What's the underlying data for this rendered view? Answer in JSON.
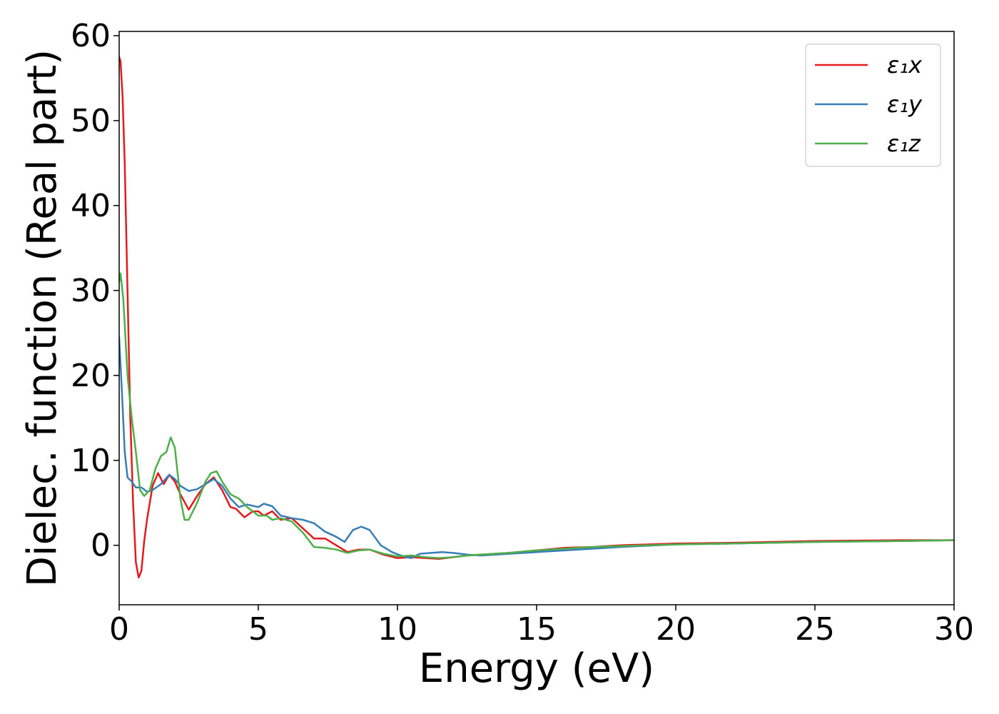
{
  "chart_data": {
    "type": "line",
    "title": "",
    "xlabel": "Energy (eV)",
    "ylabel": "Dielec. function (Real part)",
    "xlim": [
      0,
      30
    ],
    "ylim": [
      -7,
      60.5
    ],
    "xticks": [
      0,
      5,
      10,
      15,
      20,
      25,
      30
    ],
    "yticks": [
      0,
      10,
      20,
      30,
      40,
      50,
      60
    ],
    "grid": false,
    "legend_position": "upper right",
    "series": [
      {
        "name": "ε₁x",
        "color": "#e41a1c",
        "x": [
          0,
          0.05,
          0.12,
          0.2,
          0.3,
          0.4,
          0.5,
          0.6,
          0.7,
          0.8,
          0.9,
          1.0,
          1.2,
          1.4,
          1.6,
          1.8,
          2.0,
          2.2,
          2.5,
          2.8,
          3.1,
          3.4,
          3.7,
          4.0,
          4.2,
          4.5,
          4.8,
          5.0,
          5.2,
          5.5,
          5.8,
          6.2,
          6.6,
          7.0,
          7.4,
          7.8,
          8.2,
          8.6,
          9.0,
          9.5,
          10.0,
          10.5,
          11.0,
          11.5,
          12.0,
          12.5,
          13.0,
          14.0,
          15.0,
          16.0,
          17.0,
          18.0,
          20.0,
          22.0,
          25.0,
          28.0,
          30.0
        ],
        "y": [
          57.5,
          57.0,
          53.0,
          45.0,
          30.0,
          15.0,
          5.0,
          -2.0,
          -3.8,
          -3.0,
          0.5,
          3.0,
          7.0,
          8.5,
          7.2,
          8.3,
          7.5,
          6.0,
          4.2,
          5.8,
          7.2,
          8.0,
          6.5,
          4.5,
          4.3,
          3.3,
          4.0,
          4.0,
          3.5,
          4.0,
          3.0,
          3.2,
          2.0,
          0.8,
          0.8,
          0.0,
          -0.8,
          -0.5,
          -0.5,
          -1.1,
          -1.5,
          -1.4,
          -1.5,
          -1.6,
          -1.4,
          -1.2,
          -1.1,
          -0.9,
          -0.6,
          -0.3,
          -0.2,
          0.0,
          0.2,
          0.3,
          0.5,
          0.6,
          0.6
        ]
      },
      {
        "name": "ε₁y",
        "color": "#377eb8",
        "x": [
          0,
          0.1,
          0.2,
          0.3,
          0.45,
          0.6,
          0.8,
          1.0,
          1.2,
          1.5,
          1.8,
          2.0,
          2.2,
          2.5,
          2.8,
          3.1,
          3.4,
          3.7,
          4.0,
          4.3,
          4.6,
          5.0,
          5.2,
          5.5,
          5.8,
          6.2,
          6.6,
          7.0,
          7.4,
          7.8,
          8.1,
          8.4,
          8.7,
          9.0,
          9.4,
          9.8,
          10.2,
          10.5,
          10.8,
          11.2,
          11.6,
          12.0,
          12.5,
          13.0,
          14.0,
          15.0,
          16.0,
          17.0,
          18.0,
          20.0,
          22.0,
          25.0,
          28.0,
          30.0
        ],
        "y": [
          24.5,
          18.0,
          11.0,
          8.0,
          7.5,
          6.8,
          6.8,
          6.3,
          6.5,
          7.2,
          8.3,
          7.8,
          7.0,
          6.4,
          6.6,
          7.2,
          7.8,
          7.0,
          5.5,
          4.5,
          4.8,
          4.5,
          4.9,
          4.6,
          3.5,
          3.2,
          3.0,
          2.6,
          1.6,
          1.0,
          0.4,
          1.8,
          2.2,
          1.8,
          0.0,
          -0.8,
          -1.3,
          -1.5,
          -1.0,
          -0.9,
          -0.8,
          -0.9,
          -1.1,
          -1.2,
          -1.0,
          -0.8,
          -0.6,
          -0.4,
          -0.2,
          0.1,
          0.2,
          0.4,
          0.5,
          0.6
        ]
      },
      {
        "name": "ε₁z",
        "color": "#4daf4a",
        "x": [
          0,
          0.05,
          0.15,
          0.3,
          0.45,
          0.6,
          0.75,
          0.9,
          1.1,
          1.3,
          1.5,
          1.7,
          1.85,
          2.0,
          2.2,
          2.35,
          2.5,
          2.8,
          3.1,
          3.3,
          3.5,
          3.7,
          4.0,
          4.3,
          4.6,
          5.0,
          5.3,
          5.5,
          5.8,
          6.2,
          6.6,
          7.0,
          7.4,
          7.8,
          8.2,
          8.6,
          9.0,
          9.5,
          10.0,
          10.5,
          11.0,
          11.5,
          12.0,
          12.5,
          13.0,
          14.0,
          15.0,
          16.0,
          17.0,
          18.0,
          20.0,
          22.0,
          25.0,
          28.0,
          30.0
        ],
        "y": [
          31.0,
          32.0,
          29.0,
          20.0,
          15.0,
          11.0,
          6.5,
          5.8,
          6.5,
          9.0,
          10.5,
          11.0,
          12.7,
          11.5,
          5.5,
          3.0,
          3.0,
          5.0,
          7.5,
          8.5,
          8.7,
          7.5,
          6.0,
          5.5,
          4.5,
          3.5,
          3.5,
          3.0,
          3.2,
          2.8,
          1.5,
          -0.2,
          -0.3,
          -0.5,
          -0.9,
          -0.6,
          -0.5,
          -1.0,
          -1.3,
          -1.2,
          -1.4,
          -1.5,
          -1.4,
          -1.2,
          -1.1,
          -0.9,
          -0.6,
          -0.4,
          -0.2,
          -0.1,
          0.1,
          0.2,
          0.4,
          0.5,
          0.6
        ]
      }
    ]
  }
}
